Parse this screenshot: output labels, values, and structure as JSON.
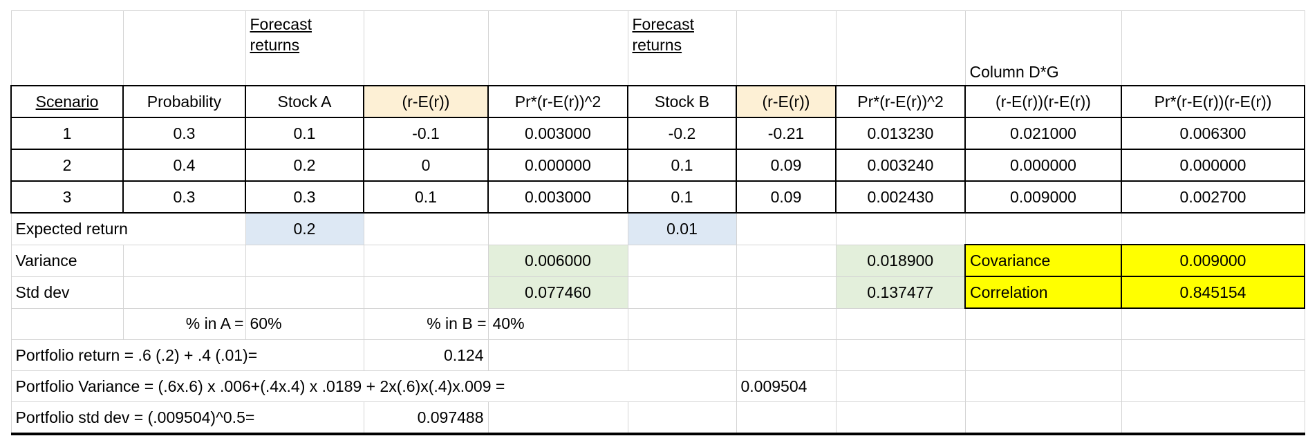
{
  "header": {
    "top": {
      "stock_a": [
        "Forecast",
        "returns"
      ],
      "stock_b": [
        "Forecast",
        "returns"
      ],
      "column_dg": "Column D*G"
    },
    "columns": [
      "Scenario",
      "Probability",
      "Stock A",
      "(r-E(r))",
      "Pr*(r-E(r))^2",
      "Stock B",
      "(r-E(r))",
      "Pr*(r-E(r))^2",
      "(r-E(r))(r-E(r))",
      "Pr*(r-E(r))(r-E(r))"
    ]
  },
  "rows": [
    [
      "1",
      "0.3",
      "0.1",
      "-0.1",
      "0.003000",
      "-0.2",
      "-0.21",
      "0.013230",
      "0.021000",
      "0.006300"
    ],
    [
      "2",
      "0.4",
      "0.2",
      "0",
      "0.000000",
      "0.1",
      "0.09",
      "0.003240",
      "0.000000",
      "0.000000"
    ],
    [
      "3",
      "0.3",
      "0.3",
      "0.1",
      "0.003000",
      "0.1",
      "0.09",
      "0.002430",
      "0.009000",
      "0.002700"
    ]
  ],
  "summary": {
    "expected": {
      "label": "Expected return",
      "stock_a": "0.2",
      "stock_b": "0.01"
    },
    "variance": {
      "label": "Variance",
      "stock_a": "0.006000",
      "stock_b": "0.018900",
      "cov_label": "Covariance",
      "cov": "0.009000"
    },
    "std": {
      "label": "Std dev",
      "stock_a": "0.077460",
      "stock_b": "0.137477",
      "corr_label": "Correlation",
      "corr": "0.845154"
    }
  },
  "weights": {
    "a_label": "% in A =",
    "a": "60%",
    "b_label": "% in B =",
    "b": "40%"
  },
  "portfolio": [
    {
      "label": "Portfolio return = .6 (.2) + .4 (.01)=",
      "value": "0.124"
    },
    {
      "label": "Portfolio Variance = (.6x.6) x .006+(.4x.4) x .0189 + 2x(.6)x(.4)x.009 =",
      "value": "0.009504"
    },
    {
      "label": "Portfolio std dev = (.009504)^0.5=",
      "value": "0.097488"
    }
  ]
}
